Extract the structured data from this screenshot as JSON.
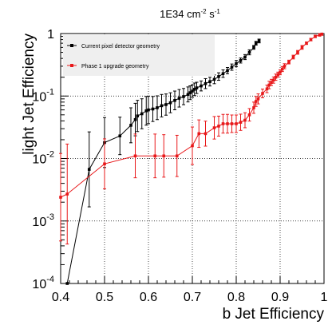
{
  "chart_data": {
    "type": "line",
    "title": "1E34 cm",
    "title_sup1": "-2",
    "title_mid": " s",
    "title_sup2": "-1",
    "xlabel": "b Jet Efficiency",
    "ylabel": "light Jet Efficiency",
    "xlim": [
      0.4,
      1.0
    ],
    "ylim": [
      0.0001,
      1
    ],
    "yscale": "log",
    "grid": true,
    "legend_position": "top-left",
    "x_ticks": [
      {
        "value": 0.4,
        "label": "0.4"
      },
      {
        "value": 0.5,
        "label": "0.5"
      },
      {
        "value": 0.6,
        "label": "0.6"
      },
      {
        "value": 0.7,
        "label": "0.7"
      },
      {
        "value": 0.8,
        "label": "0.8"
      },
      {
        "value": 0.9,
        "label": "0.9"
      },
      {
        "value": 1.0,
        "label": "1"
      }
    ],
    "y_ticks": [
      {
        "value": 0.0001,
        "base": "10",
        "exp": "-4"
      },
      {
        "value": 0.001,
        "base": "10",
        "exp": "-3"
      },
      {
        "value": 0.01,
        "base": "10",
        "exp": "-2"
      },
      {
        "value": 0.1,
        "base": "10",
        "exp": "-1"
      },
      {
        "value": 1,
        "base": "1",
        "exp": ""
      }
    ],
    "series": [
      {
        "name": "Current pixel detector geometry",
        "color": "#000000",
        "points": [
          [
            0.415,
            0.0001
          ],
          [
            0.465,
            0.0067
          ],
          [
            0.5,
            0.018
          ],
          [
            0.535,
            0.023
          ],
          [
            0.56,
            0.034
          ],
          [
            0.57,
            0.042
          ],
          [
            0.575,
            0.048
          ],
          [
            0.585,
            0.052
          ],
          [
            0.595,
            0.058
          ],
          [
            0.6,
            0.06
          ],
          [
            0.61,
            0.062
          ],
          [
            0.62,
            0.065
          ],
          [
            0.63,
            0.07
          ],
          [
            0.64,
            0.073
          ],
          [
            0.65,
            0.078
          ],
          [
            0.66,
            0.085
          ],
          [
            0.67,
            0.092
          ],
          [
            0.68,
            0.098
          ],
          [
            0.69,
            0.106
          ],
          [
            0.695,
            0.113
          ],
          [
            0.7,
            0.12
          ],
          [
            0.705,
            0.128
          ],
          [
            0.71,
            0.135
          ],
          [
            0.72,
            0.145
          ],
          [
            0.73,
            0.158
          ],
          [
            0.74,
            0.17
          ],
          [
            0.75,
            0.185
          ],
          [
            0.76,
            0.205
          ],
          [
            0.77,
            0.228
          ],
          [
            0.78,
            0.255
          ],
          [
            0.79,
            0.29
          ],
          [
            0.8,
            0.33
          ],
          [
            0.81,
            0.37
          ],
          [
            0.82,
            0.42
          ],
          [
            0.83,
            0.5
          ],
          [
            0.84,
            0.6
          ],
          [
            0.845,
            0.7
          ],
          [
            0.852,
            0.76
          ]
        ],
        "errors": [
          0,
          0.6,
          0.4,
          0.3,
          0.28,
          0.26,
          0.25,
          0.24,
          0.23,
          0.22,
          0.2,
          0.19,
          0.18,
          0.17,
          0.16,
          0.15,
          0.14,
          0.13,
          0.12,
          0.11,
          0.1,
          0.1,
          0.09,
          0.08,
          0.08,
          0.07,
          0.07,
          0.06,
          0.06,
          0.05,
          0.05,
          0.05,
          0.04,
          0.04,
          0.04,
          0.03,
          0.03,
          0.03
        ]
      },
      {
        "name": "Phase 1 upgrade geometry",
        "color": "#e8181a",
        "points": [
          [
            0.4,
            0.0024
          ],
          [
            0.415,
            0.0027
          ],
          [
            0.5,
            0.0082
          ],
          [
            0.57,
            0.011
          ],
          [
            0.615,
            0.011
          ],
          [
            0.635,
            0.011
          ],
          [
            0.665,
            0.011
          ],
          [
            0.7,
            0.016
          ],
          [
            0.715,
            0.025
          ],
          [
            0.73,
            0.025
          ],
          [
            0.75,
            0.031
          ],
          [
            0.76,
            0.033
          ],
          [
            0.77,
            0.036
          ],
          [
            0.78,
            0.036
          ],
          [
            0.79,
            0.036
          ],
          [
            0.8,
            0.036
          ],
          [
            0.81,
            0.038
          ],
          [
            0.82,
            0.041
          ],
          [
            0.83,
            0.05
          ],
          [
            0.84,
            0.065
          ],
          [
            0.845,
            0.082
          ],
          [
            0.85,
            0.09
          ],
          [
            0.86,
            0.11
          ],
          [
            0.87,
            0.13
          ],
          [
            0.875,
            0.15
          ],
          [
            0.88,
            0.165
          ],
          [
            0.885,
            0.18
          ],
          [
            0.89,
            0.2
          ],
          [
            0.895,
            0.22
          ],
          [
            0.9,
            0.24
          ],
          [
            0.905,
            0.27
          ],
          [
            0.91,
            0.3
          ],
          [
            0.92,
            0.35
          ],
          [
            0.93,
            0.42
          ],
          [
            0.94,
            0.5
          ],
          [
            0.95,
            0.6
          ],
          [
            0.96,
            0.7
          ],
          [
            0.97,
            0.8
          ],
          [
            0.98,
            0.9
          ],
          [
            0.99,
            0.95
          ],
          [
            0.995,
            0.98
          ]
        ],
        "errors": [
          0.7,
          0.8,
          0.4,
          0.35,
          0.35,
          0.34,
          0.33,
          0.3,
          0.22,
          0.2,
          0.18,
          0.16,
          0.15,
          0.15,
          0.14,
          0.14,
          0.13,
          0.12,
          0.1,
          0.09,
          0.08,
          0.08,
          0.07,
          0.06,
          0.06,
          0.05,
          0.05,
          0.05,
          0.04,
          0.04,
          0.04,
          0.04,
          0.03,
          0.03,
          0.03,
          0.03,
          0.02,
          0.02,
          0.02,
          0.02,
          0.02
        ]
      }
    ]
  }
}
